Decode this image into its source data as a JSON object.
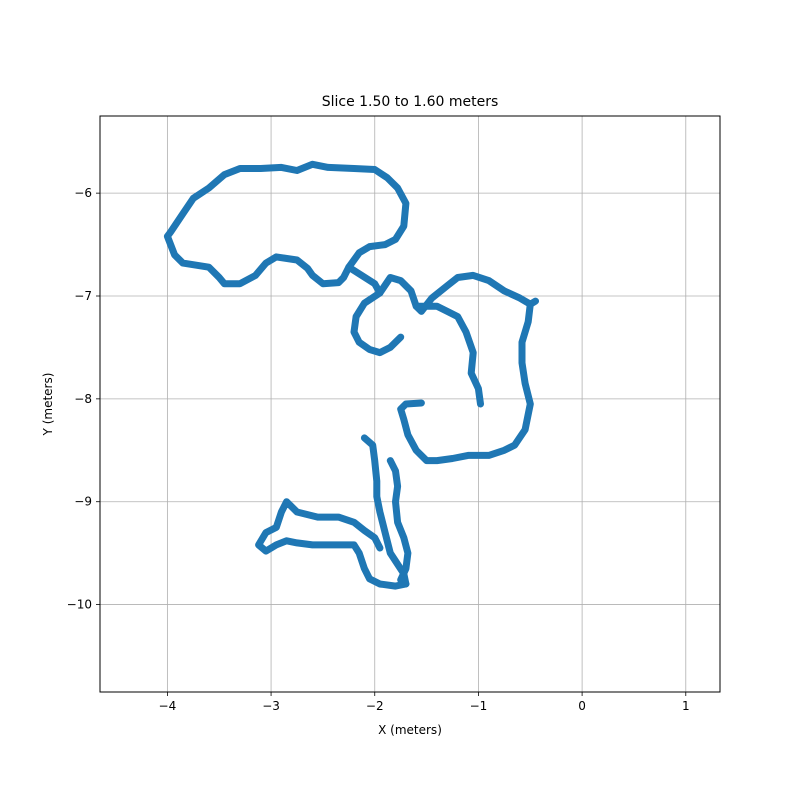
{
  "chart_data": {
    "type": "scatter",
    "title": "Slice 1.50 to 1.60 meters",
    "xlabel": "X (meters)",
    "ylabel": "Y (meters)",
    "xlim": [
      -4.65,
      1.33
    ],
    "ylim": [
      -10.85,
      -5.25
    ],
    "xticks": [
      -4,
      -3,
      -2,
      -1,
      0,
      1
    ],
    "yticks": [
      -6,
      -7,
      -8,
      -9,
      -10
    ],
    "xtick_labels": [
      "−4",
      "−3",
      "−2",
      "−1",
      "0",
      "1"
    ],
    "ytick_labels": [
      "−6",
      "−7",
      "−8",
      "−9",
      "−10"
    ],
    "grid": true,
    "series": [
      {
        "color": "#1f77b4",
        "paths": [
          [
            [
              -4.0,
              -6.42
            ],
            [
              -3.93,
              -6.6
            ],
            [
              -3.85,
              -6.68
            ],
            [
              -3.6,
              -6.72
            ],
            [
              -3.5,
              -6.82
            ],
            [
              -3.45,
              -6.88
            ],
            [
              -3.3,
              -6.88
            ],
            [
              -3.15,
              -6.8
            ],
            [
              -3.05,
              -6.68
            ],
            [
              -2.95,
              -6.62
            ],
            [
              -2.75,
              -6.65
            ],
            [
              -2.65,
              -6.73
            ],
            [
              -2.6,
              -6.8
            ],
            [
              -2.5,
              -6.88
            ],
            [
              -2.35,
              -6.87
            ],
            [
              -2.3,
              -6.82
            ],
            [
              -2.25,
              -6.72
            ],
            [
              -2.15,
              -6.58
            ],
            [
              -2.05,
              -6.52
            ],
            [
              -1.9,
              -6.5
            ],
            [
              -1.8,
              -6.45
            ],
            [
              -1.72,
              -6.32
            ],
            [
              -1.7,
              -6.1
            ],
            [
              -1.78,
              -5.95
            ],
            [
              -1.88,
              -5.85
            ],
            [
              -2.0,
              -5.77
            ],
            [
              -2.2,
              -5.76
            ],
            [
              -2.45,
              -5.75
            ],
            [
              -2.6,
              -5.72
            ],
            [
              -2.75,
              -5.78
            ],
            [
              -2.9,
              -5.75
            ],
            [
              -3.1,
              -5.76
            ],
            [
              -3.3,
              -5.76
            ],
            [
              -3.45,
              -5.82
            ],
            [
              -3.6,
              -5.95
            ],
            [
              -3.75,
              -6.05
            ],
            [
              -3.85,
              -6.2
            ],
            [
              -3.97,
              -6.38
            ],
            [
              -4.0,
              -6.42
            ]
          ],
          [
            [
              -2.25,
              -6.72
            ],
            [
              -2.0,
              -6.88
            ],
            [
              -1.95,
              -6.97
            ],
            [
              -2.1,
              -7.07
            ],
            [
              -2.18,
              -7.2
            ],
            [
              -2.2,
              -7.35
            ],
            [
              -2.15,
              -7.45
            ],
            [
              -2.05,
              -7.52
            ],
            [
              -1.95,
              -7.55
            ],
            [
              -1.85,
              -7.5
            ],
            [
              -1.75,
              -7.4
            ]
          ],
          [
            [
              -1.95,
              -6.97
            ],
            [
              -1.85,
              -6.82
            ],
            [
              -1.75,
              -6.85
            ],
            [
              -1.65,
              -6.95
            ],
            [
              -1.6,
              -7.1
            ],
            [
              -1.55,
              -7.15
            ],
            [
              -1.45,
              -7.02
            ],
            [
              -1.3,
              -6.9
            ],
            [
              -1.2,
              -6.82
            ],
            [
              -1.05,
              -6.8
            ],
            [
              -0.9,
              -6.85
            ],
            [
              -0.75,
              -6.95
            ],
            [
              -0.6,
              -7.02
            ],
            [
              -0.5,
              -7.08
            ],
            [
              -0.45,
              -7.05
            ]
          ],
          [
            [
              -0.5,
              -7.08
            ],
            [
              -0.52,
              -7.25
            ],
            [
              -0.58,
              -7.45
            ],
            [
              -0.58,
              -7.65
            ],
            [
              -0.55,
              -7.85
            ],
            [
              -0.5,
              -8.05
            ],
            [
              -0.55,
              -8.3
            ],
            [
              -0.65,
              -8.45
            ],
            [
              -0.75,
              -8.5
            ],
            [
              -0.9,
              -8.55
            ],
            [
              -1.1,
              -8.55
            ],
            [
              -1.25,
              -8.58
            ],
            [
              -1.4,
              -8.6
            ],
            [
              -1.5,
              -8.6
            ],
            [
              -1.6,
              -8.5
            ],
            [
              -1.68,
              -8.35
            ],
            [
              -1.72,
              -8.2
            ],
            [
              -1.75,
              -8.1
            ],
            [
              -1.7,
              -8.05
            ],
            [
              -1.55,
              -8.04
            ]
          ],
          [
            [
              -1.6,
              -7.1
            ],
            [
              -1.4,
              -7.1
            ],
            [
              -1.3,
              -7.15
            ],
            [
              -1.2,
              -7.2
            ],
            [
              -1.12,
              -7.35
            ],
            [
              -1.05,
              -7.55
            ],
            [
              -1.07,
              -7.75
            ],
            [
              -1.0,
              -7.9
            ],
            [
              -0.98,
              -8.05
            ]
          ],
          [
            [
              -2.1,
              -8.38
            ],
            [
              -2.02,
              -8.45
            ],
            [
              -2.0,
              -8.6
            ],
            [
              -1.98,
              -8.8
            ],
            [
              -1.98,
              -8.95
            ],
            [
              -1.95,
              -9.1
            ],
            [
              -1.9,
              -9.3
            ],
            [
              -1.85,
              -9.5
            ],
            [
              -1.72,
              -9.7
            ],
            [
              -1.7,
              -9.8
            ]
          ],
          [
            [
              -1.85,
              -8.6
            ],
            [
              -1.8,
              -8.7
            ],
            [
              -1.78,
              -8.85
            ],
            [
              -1.8,
              -9.0
            ],
            [
              -1.78,
              -9.2
            ],
            [
              -1.72,
              -9.35
            ],
            [
              -1.68,
              -9.5
            ],
            [
              -1.7,
              -9.65
            ],
            [
              -1.75,
              -9.76
            ]
          ],
          [
            [
              -1.7,
              -9.8
            ],
            [
              -1.8,
              -9.82
            ],
            [
              -1.95,
              -9.8
            ],
            [
              -2.05,
              -9.75
            ],
            [
              -2.1,
              -9.65
            ],
            [
              -2.15,
              -9.5
            ],
            [
              -2.2,
              -9.42
            ],
            [
              -2.4,
              -9.42
            ],
            [
              -2.6,
              -9.42
            ],
            [
              -2.75,
              -9.4
            ],
            [
              -2.85,
              -9.38
            ],
            [
              -2.95,
              -9.42
            ],
            [
              -3.05,
              -9.48
            ],
            [
              -3.12,
              -9.42
            ],
            [
              -3.05,
              -9.3
            ],
            [
              -2.95,
              -9.25
            ],
            [
              -2.9,
              -9.1
            ],
            [
              -2.85,
              -9.0
            ],
            [
              -2.75,
              -9.1
            ],
            [
              -2.55,
              -9.15
            ],
            [
              -2.35,
              -9.15
            ],
            [
              -2.2,
              -9.2
            ],
            [
              -2.1,
              -9.28
            ],
            [
              -2.0,
              -9.35
            ],
            [
              -1.95,
              -9.45
            ]
          ]
        ]
      }
    ]
  }
}
